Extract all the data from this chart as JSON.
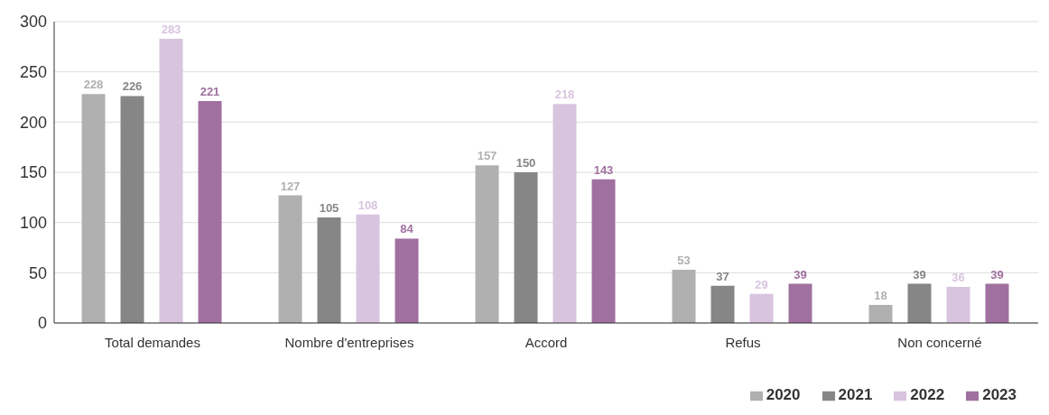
{
  "chart_data": {
    "type": "bar",
    "categories": [
      "Total demandes",
      "Nombre d'entreprises",
      "Accord",
      "Refus",
      "Non concerné"
    ],
    "series": [
      {
        "name": "2020",
        "color": "#b0b0b0",
        "values": [
          228,
          127,
          157,
          53,
          18
        ]
      },
      {
        "name": "2021",
        "color": "#868686",
        "values": [
          226,
          105,
          150,
          37,
          39
        ]
      },
      {
        "name": "2022",
        "color": "#d9c4df",
        "values": [
          283,
          108,
          218,
          29,
          36
        ]
      },
      {
        "name": "2023",
        "color": "#a070a0",
        "values": [
          221,
          84,
          143,
          39,
          39
        ]
      }
    ],
    "ylim": [
      0,
      300
    ],
    "yticks": [
      0,
      50,
      100,
      150,
      200,
      250,
      300
    ],
    "grid": "y",
    "legend": "bottom right",
    "data_labels": true
  }
}
